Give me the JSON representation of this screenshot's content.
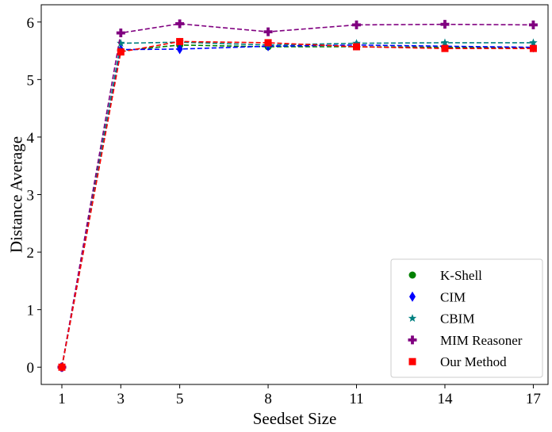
{
  "chart_data": {
    "type": "line",
    "xlabel": "Seedset Size",
    "ylabel": "Distance Average",
    "x": [
      1,
      3,
      5,
      8,
      11,
      14,
      17
    ],
    "x_tick_labels": [
      "1",
      "3",
      "5",
      "8",
      "11",
      "14",
      "17"
    ],
    "y_ticks": [
      0,
      1,
      2,
      3,
      4,
      5,
      6
    ],
    "y_tick_labels": [
      "0",
      "1",
      "2",
      "3",
      "4",
      "5",
      "6"
    ],
    "xlim": [
      0.3,
      17.5
    ],
    "ylim": [
      -0.3,
      6.3
    ],
    "grid": false,
    "legend_position": "lower-right",
    "series": [
      {
        "name": "K-Shell",
        "color": "#008000",
        "marker": "circle",
        "values": [
          0,
          5.5,
          5.6,
          5.57,
          5.57,
          5.56,
          5.55
        ]
      },
      {
        "name": "CIM",
        "color": "#0000ff",
        "marker": "diamond",
        "values": [
          0,
          5.52,
          5.53,
          5.58,
          5.6,
          5.58,
          5.56
        ]
      },
      {
        "name": "CBIM",
        "color": "#008080",
        "marker": "star",
        "values": [
          0,
          5.63,
          5.65,
          5.6,
          5.63,
          5.64,
          5.64
        ]
      },
      {
        "name": "MIM Reasoner",
        "color": "#800080",
        "marker": "plus",
        "values": [
          0,
          5.81,
          5.97,
          5.83,
          5.95,
          5.96,
          5.95
        ]
      },
      {
        "name": "Our Method",
        "color": "#ff0000",
        "marker": "square",
        "values": [
          0,
          5.48,
          5.66,
          5.64,
          5.57,
          5.54,
          5.54
        ]
      }
    ]
  }
}
